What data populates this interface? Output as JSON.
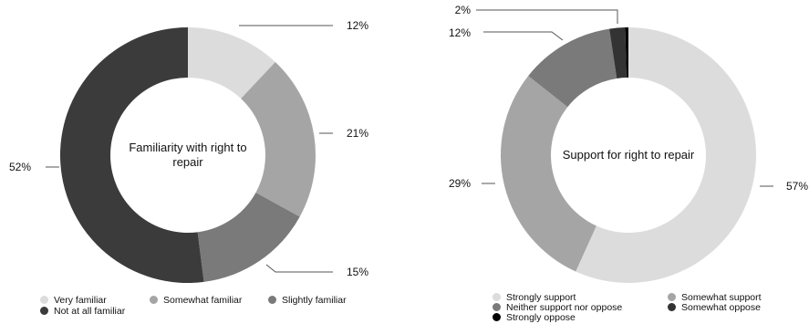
{
  "chart_data": [
    {
      "type": "pie",
      "title": "Familiarity with right to repair",
      "title_lines": [
        "Familiarity with right to",
        "repair"
      ],
      "categories": [
        "Very familiar",
        "Somewhat familiar",
        "Slightly familiar",
        "Not at all familiar"
      ],
      "values": [
        12,
        21,
        15,
        52
      ],
      "value_labels": [
        "12%",
        "21%",
        "15%",
        "52%"
      ],
      "colors": [
        "#dcdcdc",
        "#a5a5a5",
        "#7a7a7a",
        "#3b3b3b"
      ],
      "style": "donut",
      "legend_position": "bottom"
    },
    {
      "type": "pie",
      "title": "Support for right to repair",
      "title_lines": [
        "Support for right to repair"
      ],
      "categories": [
        "Strongly support",
        "Somewhat support",
        "Neither support nor oppose",
        "Somewhat oppose",
        "Strongly oppose"
      ],
      "values": [
        57,
        29,
        12,
        2,
        0.4
      ],
      "value_labels": [
        "57%",
        "29%",
        "12%",
        "2%",
        ""
      ],
      "colors": [
        "#dcdcdc",
        "#a5a5a5",
        "#7a7a7a",
        "#333333",
        "#000000"
      ],
      "style": "donut",
      "legend_position": "bottom"
    }
  ]
}
